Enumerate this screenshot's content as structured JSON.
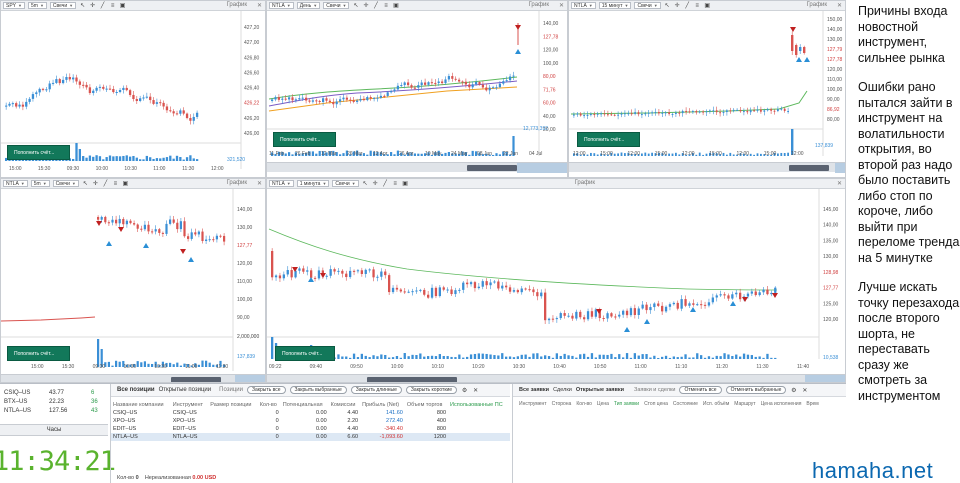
{
  "panels": {
    "spy": {
      "symbol": "SPY",
      "interval": "5m",
      "style": "Свечи",
      "title": "График",
      "prices": [
        "427,20",
        "427,00",
        "426,80",
        "426,60",
        "426,40",
        "426,22",
        "426,20",
        "426,00"
      ],
      "price_markers": [
        "426,22"
      ],
      "volume_label": "321,520",
      "times": [
        "15:00",
        "15:30",
        "09:30",
        "10:00",
        "10:30",
        "11:00",
        "11:30",
        "12:00"
      ],
      "deposit": "Пополнить счёт..."
    },
    "ntla_day": {
      "symbol": "NTLA",
      "interval": "День",
      "style": "Свечи",
      "title": "График",
      "prices": [
        "140,00",
        "127,78",
        "120,00",
        "100,00",
        "80,00",
        "71,76",
        "60,00",
        "40,00",
        "20,00"
      ],
      "price_markers": [
        "127,78",
        "80,00",
        "71,76",
        "60,00"
      ],
      "volume_label": "12,773,392",
      "times": [
        "11 Feb",
        "26 Feb",
        "12 Mar",
        "26 Mar",
        "12 Apr",
        "26 Apr",
        "10 May",
        "24 May",
        "08 Jun",
        "22 Jun",
        "04 Jul"
      ],
      "deposit": "Пополнить счёт..."
    },
    "ntla_15": {
      "symbol": "NTLA",
      "interval": "15 минут",
      "style": "Свечи",
      "title": "График",
      "prices": [
        "150,00",
        "140,00",
        "130,00",
        "127,79",
        "127,78",
        "120,00",
        "110,00",
        "100,00",
        "90,00",
        "86,92",
        "80,00"
      ],
      "price_markers": [
        "127,79",
        "127,78",
        "86,92"
      ],
      "volume_label": "137,839",
      "times": [
        "12:00",
        "15:00",
        "12:00",
        "15:00",
        "12:00",
        "15:00",
        "12:00",
        "15:00",
        "12:00"
      ],
      "deposit": "Пополнить счёт..."
    },
    "ntla_5": {
      "symbol": "NTLA",
      "interval": "5m",
      "style": "Свечи",
      "title": "График",
      "prices": [
        "140,00",
        "130,00",
        "127,77",
        "120,00",
        "110,00",
        "100,00",
        "90,00"
      ],
      "price_markers": [
        "127,77"
      ],
      "volume_label": "137,839",
      "volume_axis": "2,000,000",
      "times": [
        "15:00",
        "15:30",
        "09:30",
        "10:00",
        "10:30",
        "11:00",
        "11:30"
      ],
      "deposit": "Пополнить счёт..."
    },
    "ntla_1": {
      "symbol": "NTLA",
      "interval": "1 минута",
      "style": "Свечи",
      "title": "График",
      "prices": [
        "145,00",
        "140,00",
        "135,00",
        "130,00",
        "128,98",
        "127,77",
        "125,00",
        "120,00"
      ],
      "price_markers": [
        "128,98",
        "127,77"
      ],
      "volume_label": "10,538",
      "times": [
        "09:22",
        "09:40",
        "09:50",
        "10:00",
        "10:10",
        "10:20",
        "10:30",
        "10:40",
        "10:50",
        "11:00",
        "11:10",
        "11:20",
        "11:30",
        "11:40"
      ],
      "deposit": "Пополнить счёт..."
    }
  },
  "watchlist": [
    {
      "symbol": "CSIQ–US",
      "price": "43.77",
      "chg": "6"
    },
    {
      "symbol": "BTX–US",
      "price": "22.23",
      "chg": "36"
    },
    {
      "symbol": "NTLA–US",
      "price": "127.56",
      "chg": "43"
    }
  ],
  "clock": {
    "title": "Часы",
    "time": "11:34:21"
  },
  "positions": {
    "tab_all": "Все позиции",
    "tab_open": "Открытые позиции",
    "panel_title": "Позиции",
    "btn_close_all": "Закрыть все",
    "btn_close_selected": "Закрыть выбранные",
    "btn_close_long": "Закрыть длинные",
    "btn_close_short": "Закрыть короткие",
    "columns": [
      "Название компании",
      "Инструмент",
      "Размер позиции",
      "Кол-во",
      "Потенциальная",
      "Комиссии",
      "Прибыль (Net)",
      "Объем торгов",
      "Использованные ПС"
    ],
    "rows": [
      {
        "name": "CSIQ–US",
        "qty": "0",
        "pot": "0.00",
        "comm": "4.40",
        "pnl": "141.60",
        "vol": "800",
        "pnl_color": "#1a6fc4"
      },
      {
        "name": "XPO–US",
        "qty": "0",
        "pot": "0.00",
        "comm": "2.20",
        "pnl": "272.40",
        "vol": "400",
        "pnl_color": "#1a6fc4"
      },
      {
        "name": "EDIT–US",
        "qty": "0",
        "pot": "0.00",
        "comm": "4.40",
        "pnl": "-340.40",
        "vol": "800",
        "pnl_color": "#d03030"
      },
      {
        "name": "NTLA–US",
        "qty": "0",
        "pot": "0.00",
        "comm": "6.60",
        "pnl": "-1,093.60",
        "vol": "1200",
        "pnl_color": "#d03030"
      }
    ],
    "foot_qty_label": "Кол-во",
    "foot_qty": "0",
    "foot_unreal_label": "Нереализованная",
    "foot_unreal": "0.00 USD"
  },
  "orders": {
    "panel_title": "Заявки и сделки",
    "tab_all": "Все заявки",
    "tab_deals": "Сделки",
    "tab_open": "Открытые заявки",
    "btn_cancel_all": "Отменить все",
    "btn_cancel_selected": "Отменить выбранные",
    "columns": [
      "Инструмент",
      "Сторона",
      "Кол-во",
      "Цена",
      "Тип заявки",
      "Стоп цена",
      "Состояние",
      "Исп. объём",
      "Маршрут",
      "Цена исполнения",
      "Врем"
    ]
  },
  "notes": {
    "p1": "Причины входа новостной инструмент, сильнее рынка",
    "p2": "Ошибки рано пытался зайти в инструмент на волатильности открытия, во второй раз надо было поставить либо стоп по короче, либо выйти при переломе тренда на 5 минутке",
    "p3": "Лучше искать точку перезахода после второго шорта, не переставать сразу же смотреть за инструментом"
  },
  "watermark": "hamaha.net",
  "colors": {
    "up": "#3a8fd6",
    "down": "#d9534f",
    "ma_green": "#5cb85c",
    "ma_purple": "#7b5cc4",
    "ma_orange": "#f0a020",
    "clock": "#5ab32e",
    "button": "#12785a"
  }
}
